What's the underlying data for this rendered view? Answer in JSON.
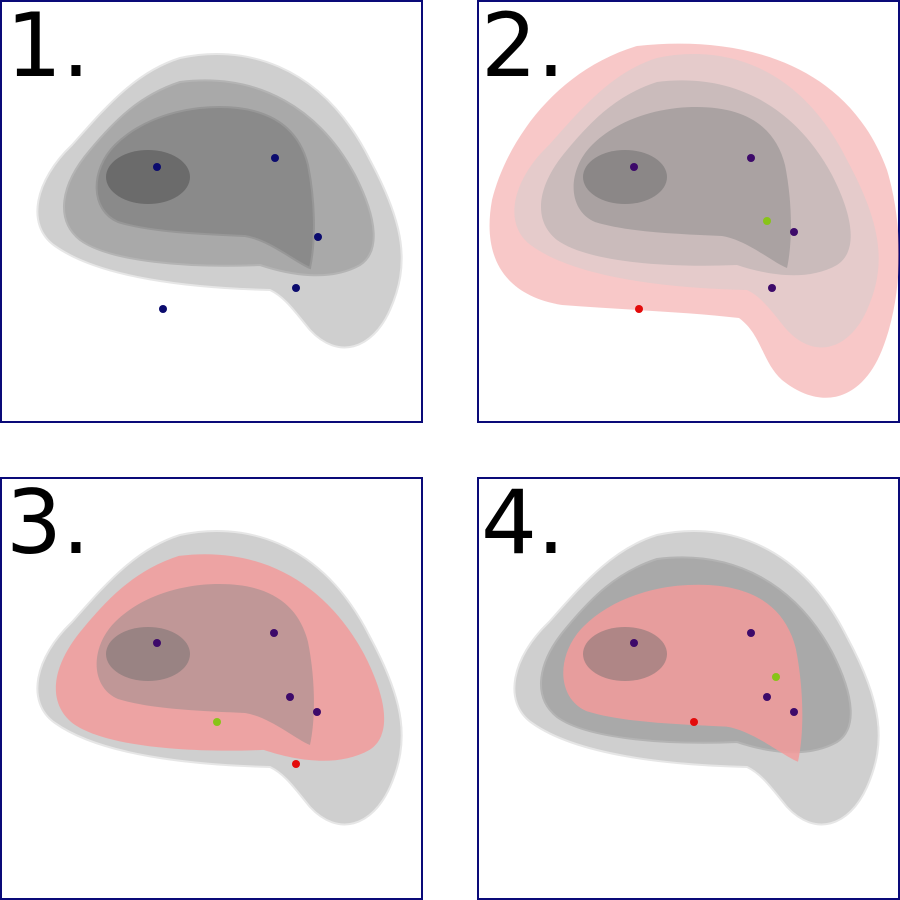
{
  "colors": {
    "frame": "#0a0a78",
    "gray_level_1": "#cfcfcf",
    "gray_level_2": "#a9a9a9",
    "gray_level_3": "#8a8a8a",
    "gray_level_4": "#6b6b6b",
    "highlight_fill": "#f29b9b",
    "point_default": "#0b0b6e",
    "point_tinted": "#3d0a6a",
    "point_new": "#88c418",
    "point_red": "#e30b0b"
  },
  "panels": [
    {
      "label": "1.",
      "highlight": "none",
      "points": [
        {
          "kind": "point_default"
        },
        {
          "kind": "point_default"
        },
        {
          "kind": "point_default"
        },
        {
          "kind": "point_default"
        },
        {
          "kind": "point_default"
        }
      ]
    },
    {
      "label": "2.",
      "highlight": "outer-expanded",
      "points": [
        {
          "kind": "point_tinted"
        },
        {
          "kind": "point_tinted"
        },
        {
          "kind": "point_tinted"
        },
        {
          "kind": "point_tinted"
        },
        {
          "kind": "point_red"
        },
        {
          "kind": "point_new"
        }
      ]
    },
    {
      "label": "3.",
      "highlight": "level-2",
      "points": [
        {
          "kind": "point_tinted"
        },
        {
          "kind": "point_tinted"
        },
        {
          "kind": "point_tinted"
        },
        {
          "kind": "point_tinted"
        },
        {
          "kind": "point_red"
        },
        {
          "kind": "point_new"
        }
      ]
    },
    {
      "label": "4.",
      "highlight": "level-3",
      "points": [
        {
          "kind": "point_tinted"
        },
        {
          "kind": "point_tinted"
        },
        {
          "kind": "point_tinted"
        },
        {
          "kind": "point_tinted"
        },
        {
          "kind": "point_red"
        },
        {
          "kind": "point_new"
        }
      ]
    }
  ]
}
